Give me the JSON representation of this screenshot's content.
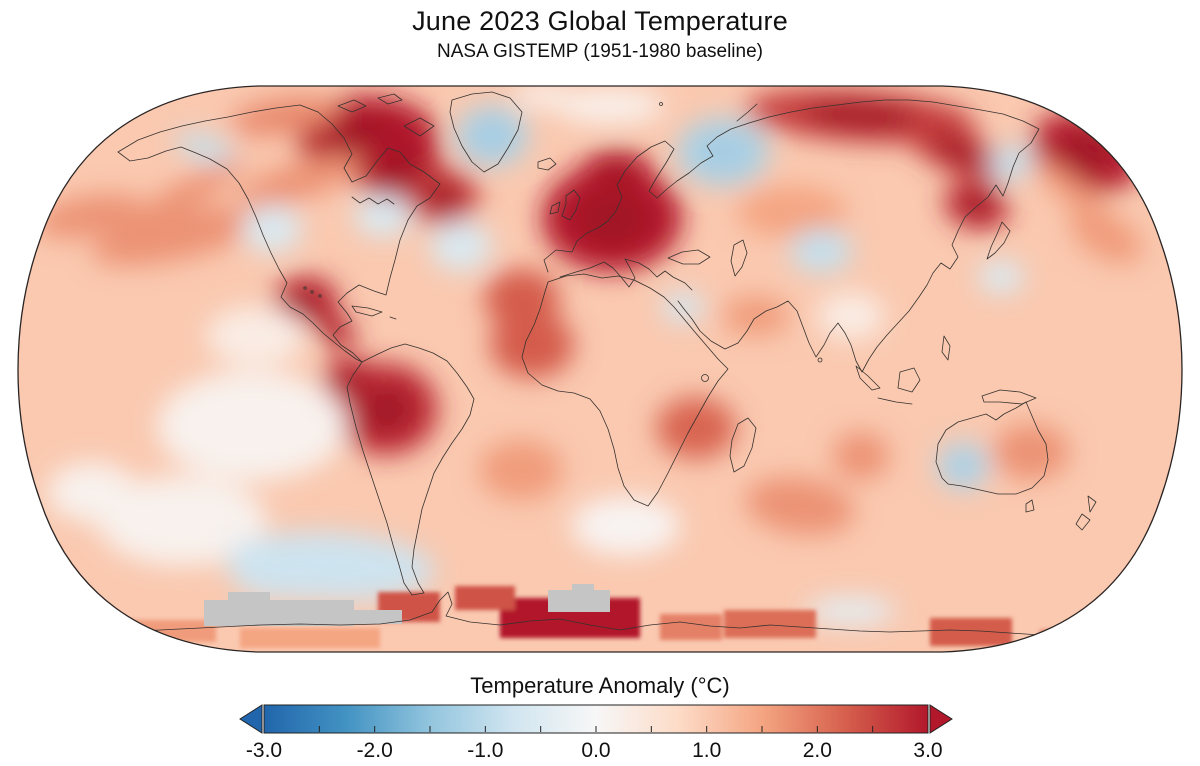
{
  "header": {
    "title": "June 2023 Global Temperature",
    "subtitle": "NASA GISTEMP (1951-1980 baseline)"
  },
  "colorbar": {
    "label": "Temperature Anomaly (°C)",
    "tick_labels": [
      "-3.0",
      "-2.0",
      "-1.0",
      "0.0",
      "1.0",
      "2.0",
      "3.0"
    ],
    "min": -3.0,
    "max": 3.0,
    "minor_tick_step": 0.5,
    "border_color": "#222222",
    "left_arrow_color": "#2166ac",
    "right_arrow_color": "#b2182b"
  },
  "chart_data": {
    "type": "heatmap",
    "title": "June 2023 Global Temperature",
    "subtitle": "NASA GISTEMP (1951-1980 baseline)",
    "dataset": "NASA GISTEMP",
    "month": "June 2023",
    "baseline_period": "1951-1980",
    "projection": "Robinson",
    "units": "°C",
    "colorbar": {
      "label": "Temperature Anomaly (°C)",
      "range": [
        -3,
        3
      ],
      "stops": [
        {
          "v": -3.0,
          "c": "#2166ac"
        },
        {
          "v": -2.25,
          "c": "#4393c3"
        },
        {
          "v": -1.5,
          "c": "#92c5de"
        },
        {
          "v": -0.75,
          "c": "#d1e5f0"
        },
        {
          "v": 0.0,
          "c": "#f7f7f7"
        },
        {
          "v": 0.75,
          "c": "#fddbc7"
        },
        {
          "v": 1.5,
          "c": "#f4a582"
        },
        {
          "v": 2.25,
          "c": "#d6604d"
        },
        {
          "v": 3.0,
          "c": "#b2182b"
        }
      ]
    },
    "no_data_color": "#c5c5c5",
    "base_ocean_anomaly_c": 1.0,
    "regions": [
      {
        "name": "Canadian Arctic",
        "anomaly_c": 3.0,
        "spots": [
          [
            368,
            138,
            70,
            42,
            0
          ],
          [
            398,
            168,
            44,
            34,
            0
          ]
        ]
      },
      {
        "name": "Labrador and Quebec",
        "anomaly_c": 2.6,
        "spots": [
          [
            443,
            197,
            36,
            28,
            0
          ]
        ]
      },
      {
        "name": "Northwest Canada",
        "anomaly_c": 1.8,
        "spots": [
          [
            285,
            116,
            55,
            18,
            -8
          ]
        ]
      },
      {
        "name": "Mexico and Central America",
        "anomaly_c": 2.8,
        "spots": [
          [
            306,
            301,
            33,
            25,
            0
          ],
          [
            336,
            331,
            22,
            15,
            35
          ]
        ]
      },
      {
        "name": "North Pacific warm bands",
        "anomaly_c": 1.7,
        "spots": [
          [
            175,
            236,
            85,
            24,
            -12
          ],
          [
            300,
            181,
            65,
            18,
            -18
          ],
          [
            90,
            216,
            55,
            20,
            -10
          ],
          [
            185,
            195,
            70,
            13,
            -30
          ]
        ]
      },
      {
        "name": "Western Europe",
        "anomaly_c": 3.0,
        "spots": [
          [
            612,
            218,
            70,
            54,
            0
          ],
          [
            617,
            172,
            36,
            22,
            0
          ]
        ]
      },
      {
        "name": "Eastern North Atlantic off NW Africa",
        "anomaly_c": 2.3,
        "spots": [
          [
            532,
            345,
            42,
            33,
            0
          ],
          [
            522,
            299,
            38,
            30,
            0
          ]
        ]
      },
      {
        "name": "Siberian Arctic band",
        "anomaly_c": 2.6,
        "spots": [
          [
            860,
            116,
            115,
            26,
            4
          ],
          [
            958,
            152,
            58,
            22,
            25
          ]
        ]
      },
      {
        "name": "Chukotka and Bering Strait",
        "anomaly_c": 2.9,
        "spots": [
          [
            1086,
            152,
            56,
            38,
            20
          ]
        ]
      },
      {
        "name": "Amur / Sea of Okhotsk",
        "anomaly_c": 2.8,
        "spots": [
          [
            976,
            206,
            33,
            23,
            15
          ]
        ]
      },
      {
        "name": "Central Asia",
        "anomaly_c": 1.5,
        "spots": [
          [
            792,
            212,
            55,
            26,
            0
          ]
        ]
      },
      {
        "name": "Eastern Pacific off Peru (El Nino)",
        "anomaly_c": 2.8,
        "spots": [
          [
            386,
            409,
            52,
            46,
            0
          ],
          [
            352,
            380,
            30,
            22,
            0
          ]
        ]
      },
      {
        "name": "Southern Africa",
        "anomaly_c": 2.2,
        "spots": [
          [
            696,
            428,
            40,
            31,
            0
          ]
        ]
      },
      {
        "name": "South Indian Ocean",
        "anomaly_c": 1.7,
        "spots": [
          [
            800,
            506,
            55,
            28,
            8
          ],
          [
            861,
            456,
            28,
            24,
            0
          ]
        ]
      },
      {
        "name": "Eastern Australia / Coral Sea",
        "anomaly_c": 1.7,
        "spots": [
          [
            1031,
            452,
            38,
            28,
            0
          ]
        ]
      },
      {
        "name": "Central South Atlantic",
        "anomaly_c": 1.6,
        "spots": [
          [
            521,
            470,
            42,
            30,
            0
          ]
        ]
      },
      {
        "name": "Arabian Sea",
        "anomaly_c": 1.6,
        "spots": [
          [
            756,
            316,
            34,
            20,
            0
          ]
        ]
      },
      {
        "name": "Northwest Pacific east of Japan",
        "anomaly_c": 1.6,
        "spots": [
          [
            1106,
            236,
            40,
            22,
            30
          ],
          [
            1075,
            195,
            55,
            12,
            40
          ]
        ]
      },
      {
        "name": "Greenland",
        "anomaly_c": -1.2,
        "spots": [
          [
            492,
            136,
            36,
            30,
            0
          ]
        ]
      },
      {
        "name": "Gulf of Alaska coast",
        "anomaly_c": -0.9,
        "spots": [
          [
            205,
            148,
            30,
            13,
            18
          ]
        ]
      },
      {
        "name": "Western United States",
        "anomaly_c": -0.6,
        "spots": [
          [
            272,
            229,
            30,
            24,
            0
          ]
        ]
      },
      {
        "name": "Eastern United States",
        "anomaly_c": -0.6,
        "spots": [
          [
            383,
            216,
            29,
            21,
            0
          ]
        ]
      },
      {
        "name": "Central North Atlantic",
        "anomaly_c": -0.6,
        "spots": [
          [
            461,
            246,
            31,
            25,
            0
          ]
        ]
      },
      {
        "name": "Barents and Kara Seas",
        "anomaly_c": -1.2,
        "spots": [
          [
            723,
            152,
            46,
            34,
            0
          ]
        ]
      },
      {
        "name": "Kamchatka",
        "anomaly_c": -0.9,
        "spots": [
          [
            1011,
            163,
            23,
            17,
            -20
          ]
        ]
      },
      {
        "name": "Northern India / Himalaya",
        "anomaly_c": -0.9,
        "spots": [
          [
            821,
            251,
            31,
            22,
            0
          ]
        ]
      },
      {
        "name": "Philippine Sea",
        "anomaly_c": -0.6,
        "spots": [
          [
            1001,
            277,
            23,
            17,
            0
          ]
        ]
      },
      {
        "name": "Sahel (Sudan)",
        "anomaly_c": -0.7,
        "spots": [
          [
            683,
            307,
            21,
            16,
            0
          ]
        ]
      },
      {
        "name": "Tropical eastern Pacific",
        "anomaly_c": 0.15,
        "spots": [
          [
            252,
            426,
            95,
            55,
            0
          ],
          [
            182,
            521,
            85,
            45,
            0
          ],
          [
            92,
            492,
            45,
            30,
            0
          ]
        ]
      },
      {
        "name": "Southern Ocean off South America",
        "anomaly_c": -0.8,
        "spots": [
          [
            330,
            566,
            105,
            34,
            3
          ],
          [
            292,
            577,
            60,
            22,
            0
          ]
        ]
      },
      {
        "name": "Western Australia",
        "anomaly_c": -1.1,
        "spots": [
          [
            963,
            466,
            26,
            24,
            0
          ]
        ]
      },
      {
        "name": "South of Africa",
        "anomaly_c": 0.1,
        "spots": [
          [
            626,
            526,
            55,
            30,
            0
          ]
        ]
      },
      {
        "name": "Central Arctic",
        "anomaly_c": 0.2,
        "spots": [
          [
            610,
            106,
            55,
            18,
            0
          ],
          [
            542,
            96,
            30,
            12,
            0
          ]
        ]
      },
      {
        "name": "Bay of Bengal",
        "anomaly_c": 0.3,
        "spots": [
          [
            851,
            316,
            34,
            24,
            0
          ]
        ]
      },
      {
        "name": "Pacific west of Mexico",
        "anomaly_c": 0.3,
        "spots": [
          [
            256,
            336,
            50,
            30,
            0
          ]
        ]
      },
      {
        "name": "Southern Ocean near 90E",
        "anomaly_c": -0.4,
        "spots": [
          [
            851,
            611,
            45,
            14,
            0
          ]
        ]
      }
    ],
    "antarctic_blocks": [
      [
        500,
        598,
        140,
        40,
        3.0
      ],
      [
        455,
        586,
        60,
        24,
        2.4
      ],
      [
        378,
        592,
        62,
        30,
        2.4
      ],
      [
        660,
        614,
        62,
        26,
        1.9
      ],
      [
        724,
        610,
        92,
        28,
        2.1
      ],
      [
        930,
        618,
        82,
        28,
        2.3
      ],
      [
        1040,
        630,
        72,
        22,
        2.0
      ],
      [
        96,
        620,
        120,
        22,
        1.6
      ],
      [
        240,
        628,
        140,
        20,
        1.5
      ]
    ],
    "no_data_patches": [
      [
        204,
        600,
        150,
        26
      ],
      [
        228,
        592,
        42,
        10
      ],
      [
        340,
        610,
        62,
        14
      ],
      [
        548,
        590,
        62,
        22
      ],
      [
        572,
        584,
        22,
        8
      ]
    ]
  }
}
